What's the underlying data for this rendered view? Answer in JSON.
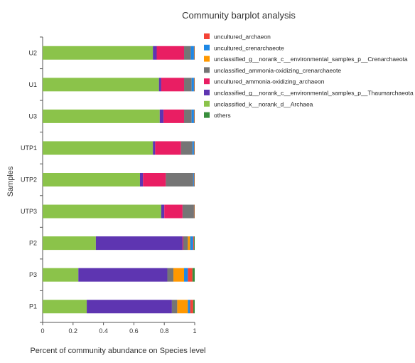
{
  "chart_data": {
    "type": "bar",
    "orientation": "horizontal",
    "stacked": true,
    "title": "Community barplot analysis",
    "xlabel": "Percent of community abundance on Species level",
    "ylabel": "Samples",
    "xlim": [
      0,
      1
    ],
    "xticks": [
      "0",
      "0.2",
      "0.4",
      "0.6",
      "0.8",
      "1"
    ],
    "grid": false,
    "legend_position": "top-right",
    "categories": [
      "U2",
      "U1",
      "U3",
      "UTP1",
      "UTP2",
      "UTP3",
      "P2",
      "P3",
      "P1"
    ],
    "series": [
      {
        "name": "unclassified_k__norank_d__Archaea",
        "color": "#8bc34a",
        "values": [
          0.725,
          0.765,
          0.77,
          0.725,
          0.64,
          0.78,
          0.35,
          0.235,
          0.29
        ]
      },
      {
        "name": "unclassified_g__norank_c__environmental_samples_p__Thaumarchaeota",
        "color": "#5e35b1",
        "values": [
          0.025,
          0.015,
          0.025,
          0.015,
          0.02,
          0.02,
          0.57,
          0.585,
          0.56
        ]
      },
      {
        "name": "uncultured_ammonia-oxidizing_archaeon",
        "color": "#e91e63",
        "values": [
          0.18,
          0.15,
          0.135,
          0.17,
          0.15,
          0.12,
          0.005,
          0.0,
          0.0
        ]
      },
      {
        "name": "unclassified_ammonia-oxidizing_crenarchaeote",
        "color": "#757575",
        "values": [
          0.045,
          0.05,
          0.05,
          0.075,
          0.18,
          0.075,
          0.03,
          0.04,
          0.035
        ]
      },
      {
        "name": "unclassified_g__norank_c__environmental_samples_p__Crenarchaeota",
        "color": "#ff9800",
        "values": [
          0.0,
          0.0,
          0.0,
          0.0,
          0.0,
          0.0,
          0.015,
          0.07,
          0.07
        ]
      },
      {
        "name": "uncultured_crenarchaeote",
        "color": "#1e88e5",
        "values": [
          0.02,
          0.015,
          0.015,
          0.01,
          0.005,
          0.0,
          0.02,
          0.025,
          0.015
        ]
      },
      {
        "name": "uncultured_archaeon",
        "color": "#f44336",
        "values": [
          0.003,
          0.003,
          0.003,
          0.003,
          0.003,
          0.003,
          0.005,
          0.03,
          0.02
        ]
      },
      {
        "name": "others",
        "color": "#388e3c",
        "values": [
          0.002,
          0.002,
          0.002,
          0.002,
          0.002,
          0.002,
          0.005,
          0.015,
          0.01
        ]
      }
    ],
    "legend_order": [
      "uncultured_archaeon",
      "uncultured_crenarchaeote",
      "unclassified_g__norank_c__environmental_samples_p__Crenarchaeota",
      "unclassified_ammonia-oxidizing_crenarchaeote",
      "uncultured_ammonia-oxidizing_archaeon",
      "unclassified_g__norank_c__environmental_samples_p__Thaumarchaeota",
      "unclassified_k__norank_d__Archaea",
      "others"
    ]
  }
}
